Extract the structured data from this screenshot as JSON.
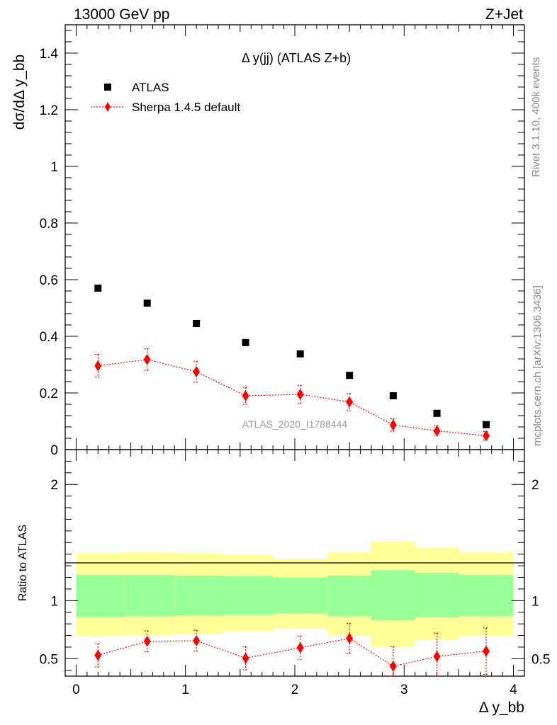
{
  "header": {
    "left": "13000 GeV pp",
    "right": "Z+Jet"
  },
  "side_text": {
    "rivet": "Rivet 3.1.10,  400k events",
    "mcplots": "mcplots.cern.ch [arXiv:1306.3436]"
  },
  "chart_data": {
    "type": "scatter",
    "title": "Δ y(jj) (ATLAS Z+b)",
    "analysis_label": "ATLAS_2020_I1788444",
    "xlabel": "Δ y_bb",
    "ylabel": "dσ/dΔ y_bb",
    "ratio_ylabel": "Ratio to ATLAS",
    "xlim": [
      -0.1,
      4.1
    ],
    "ylim": [
      0,
      1.5
    ],
    "ratio_ylim": [
      0.35,
      2.3
    ],
    "x_ticks": [
      "0",
      "1",
      "2",
      "3",
      "4"
    ],
    "y_ticks": [
      "0",
      "0.2",
      "0.4",
      "0.6",
      "0.8",
      "1",
      "1.2",
      "1.4"
    ],
    "ratio_ticks": [
      "0.5",
      "1",
      "2"
    ],
    "legend": {
      "placement": "top-left",
      "entries": [
        "ATLAS",
        "Sherpa 1.4.5 default"
      ]
    },
    "bin_edges": [
      0,
      0.45,
      0.9,
      1.35,
      1.8,
      2.3,
      2.7,
      3.1,
      3.5,
      4.0
    ],
    "series": [
      {
        "name": "ATLAS",
        "color": "#000000",
        "x": [
          0.2,
          0.65,
          1.1,
          1.55,
          2.05,
          2.5,
          2.9,
          3.3,
          3.75
        ],
        "y": [
          0.57,
          0.517,
          0.445,
          0.378,
          0.338,
          0.262,
          0.19,
          0.128,
          0.088
        ]
      },
      {
        "name": "Sherpa 1.4.5 default",
        "color": "#ff0000",
        "x": [
          0.2,
          0.65,
          1.1,
          1.55,
          2.05,
          2.5,
          2.9,
          3.3,
          3.75
        ],
        "y": [
          0.296,
          0.318,
          0.275,
          0.19,
          0.195,
          0.168,
          0.087,
          0.066,
          0.049
        ],
        "yerr": [
          0.04,
          0.038,
          0.037,
          0.03,
          0.032,
          0.03,
          0.022,
          0.018,
          0.015
        ]
      }
    ],
    "ratio": {
      "x": [
        0.2,
        0.65,
        1.1,
        1.55,
        2.05,
        2.5,
        2.9,
        3.3,
        3.75
      ],
      "values": [
        0.53,
        0.65,
        0.655,
        0.505,
        0.595,
        0.675,
        0.435,
        0.52,
        0.565
      ],
      "err": [
        0.1,
        0.09,
        0.09,
        0.1,
        0.1,
        0.13,
        0.17,
        0.2,
        0.2
      ],
      "band_inner_lo": [
        0.86,
        0.865,
        0.87,
        0.875,
        0.89,
        0.865,
        0.83,
        0.855,
        0.865
      ],
      "band_inner_hi": [
        1.22,
        1.22,
        1.215,
        1.21,
        1.2,
        1.215,
        1.26,
        1.24,
        1.22
      ],
      "band_outer_lo": [
        0.695,
        0.7,
        0.71,
        0.735,
        0.76,
        0.7,
        0.6,
        0.66,
        0.695
      ],
      "band_outer_hi": [
        1.41,
        1.415,
        1.405,
        1.395,
        1.36,
        1.415,
        1.51,
        1.455,
        1.415
      ]
    }
  }
}
